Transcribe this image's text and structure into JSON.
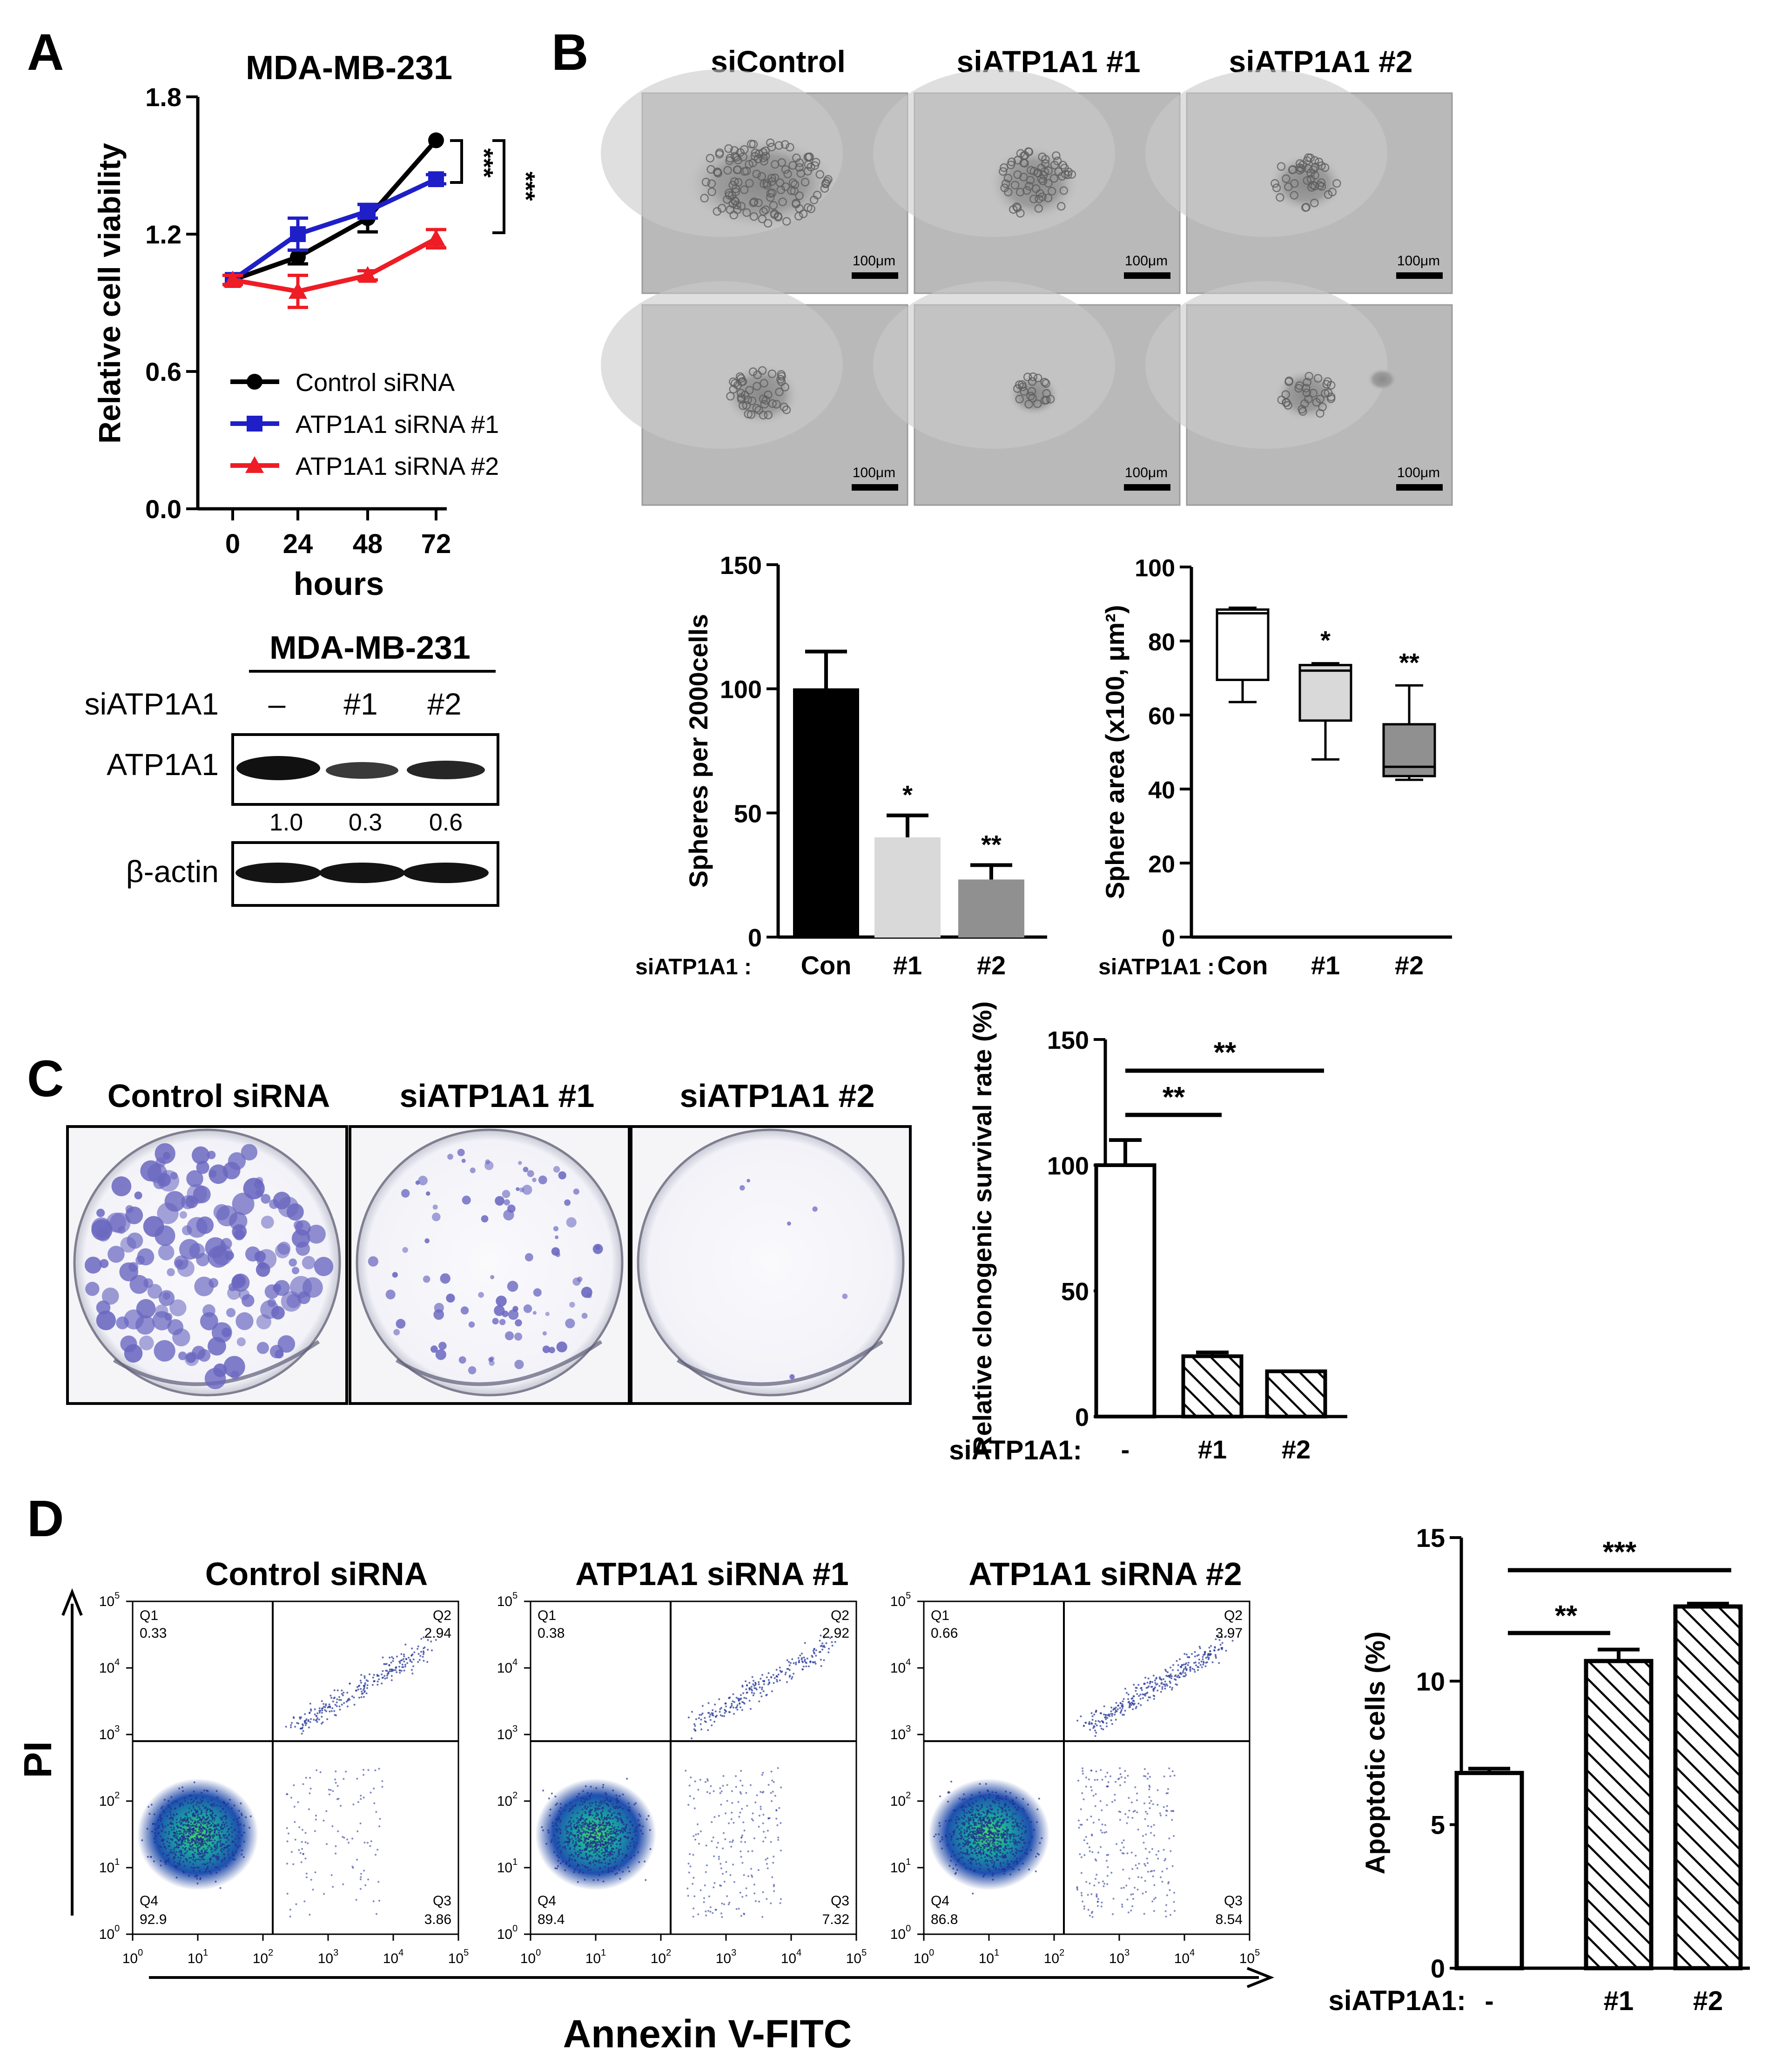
{
  "panel_letters": [
    "A",
    "B",
    "C",
    "D"
  ],
  "axis_keywords": {
    "treatment_prefix": "siATP1A1 :",
    "treatment_prefix_nospace": "siATP1A1:"
  },
  "colors": {
    "black": "#000000",
    "blue": "#1f1fc8",
    "red": "#ee1c25",
    "light_gray": "#d9d9d9",
    "dark_gray": "#909090"
  },
  "panelA": {
    "title": "MDA-MB-231",
    "ylabel": "Relative cell viability",
    "xlabel": "hours",
    "significance": [
      "***",
      "***"
    ],
    "blot": {
      "title": "MDA-MB-231",
      "row_label": "siATP1A1",
      "lanes": [
        "–",
        "#1",
        "#2"
      ],
      "bands": [
        "ATP1A1",
        "β-actin"
      ],
      "quant": [
        "1.0",
        "0.3",
        "0.6"
      ]
    }
  },
  "panelB": {
    "image_labels": [
      "siControl",
      "siATP1A1 #1",
      "siATP1A1 #2"
    ],
    "scale_label": "100μm",
    "sig_spheres": [
      "*",
      "**"
    ],
    "sig_area": [
      "*",
      "**"
    ]
  },
  "panelC": {
    "dish_labels": [
      "Control siRNA",
      "siATP1A1 #1",
      "siATP1A1 #2"
    ],
    "sig": [
      "**",
      "**"
    ]
  },
  "panelD": {
    "plot_titles": [
      "Control siRNA",
      "ATP1A1 siRNA #1",
      "ATP1A1 siRNA #2"
    ],
    "y_axis": "PI",
    "x_axis": "Annexin V-FITC",
    "quadrant_names": [
      "Q1",
      "Q2",
      "Q3",
      "Q4"
    ],
    "quadrant_values": [
      [
        "0.33",
        "2.94",
        "3.86",
        "92.9"
      ],
      [
        "0.38",
        "2.92",
        "7.32",
        "89.4"
      ],
      [
        "0.66",
        "3.97",
        "8.54",
        "86.8"
      ]
    ],
    "sig": [
      "**",
      "***"
    ]
  },
  "chart_data": [
    {
      "id": "A",
      "type": "line",
      "title": "MDA-MB-231",
      "xlabel": "hours",
      "ylabel": "Relative cell viability",
      "x": [
        0,
        24,
        48,
        72
      ],
      "ylim": [
        0,
        1.8
      ],
      "yticks": [
        "0.0",
        "0.6",
        "1.2",
        "1.8"
      ],
      "series": [
        {
          "name": "Control siRNA",
          "color": "#000000",
          "marker": "circle",
          "values": [
            1.0,
            1.1,
            1.27,
            1.61
          ],
          "err": [
            0.02,
            0.03,
            0.06,
            0.0
          ]
        },
        {
          "name": "ATP1A1 siRNA #1",
          "color": "#1f1fc8",
          "marker": "square",
          "values": [
            1.0,
            1.2,
            1.3,
            1.44
          ],
          "err": [
            0.02,
            0.07,
            0.03,
            0.02
          ]
        },
        {
          "name": "ATP1A1 siRNA #2",
          "color": "#ee1c25",
          "marker": "triangle",
          "values": [
            1.0,
            0.95,
            1.02,
            1.18
          ],
          "err": [
            0.02,
            0.07,
            0.02,
            0.04
          ]
        }
      ],
      "legend": "bottom"
    },
    {
      "id": "B-spheres",
      "type": "bar",
      "ylabel": "Spheres per 2000cells",
      "categories": [
        "Con",
        "#1",
        "#2"
      ],
      "values": [
        100,
        40,
        23
      ],
      "err": [
        15,
        9,
        6
      ],
      "ylim": [
        0,
        150
      ],
      "yticks": [
        "0",
        "50",
        "100",
        "150"
      ]
    },
    {
      "id": "B-area",
      "type": "box",
      "ylabel": "Sphere area (x100, μm²)",
      "categories": [
        "Con",
        "#1",
        "#2"
      ],
      "boxes": [
        {
          "min": 63.5,
          "q1": 69.5,
          "median": 87.5,
          "q3": 88.5,
          "max": 89
        },
        {
          "min": 48,
          "q1": 58.5,
          "median": 72,
          "q3": 73.5,
          "max": 74
        },
        {
          "min": 42.5,
          "q1": 43.5,
          "median": 46,
          "q3": 57.5,
          "max": 68
        }
      ],
      "ylim": [
        0,
        100
      ],
      "yticks": [
        "0",
        "20",
        "40",
        "60",
        "80",
        "100"
      ]
    },
    {
      "id": "C",
      "type": "bar",
      "ylabel": "Relative clonogenic survival rate (%)",
      "categories": [
        "-",
        "#1",
        "#2"
      ],
      "values": [
        100,
        24,
        18
      ],
      "err": [
        10,
        1.5,
        0
      ],
      "ylim": [
        0,
        150
      ],
      "yticks": [
        "0",
        "50",
        "100",
        "150"
      ]
    },
    {
      "id": "D",
      "type": "bar",
      "ylabel": "Apoptotic cells (%)",
      "categories": [
        "-",
        "#1",
        "#2"
      ],
      "values": [
        6.8,
        10.7,
        12.6
      ],
      "err": [
        0.15,
        0.4,
        0.1
      ],
      "ylim": [
        0,
        15
      ],
      "yticks": [
        "0",
        "5",
        "10",
        "15"
      ]
    }
  ]
}
